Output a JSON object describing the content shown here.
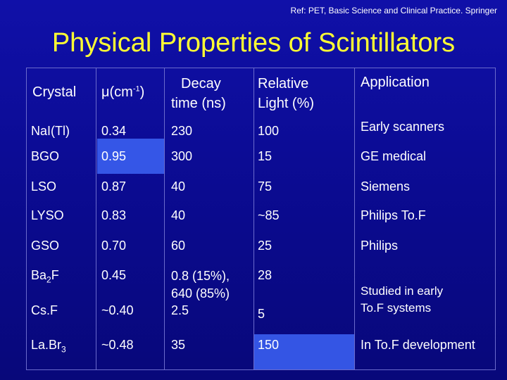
{
  "ref": "Ref: PET, Basic Science and Clinical Practice. Springer",
  "title": "Physical Properties of Scintillators",
  "headers": {
    "crystal": "Crystal",
    "mu": "μ(cm",
    "mu_exp": "-1",
    "mu_close": ")",
    "decay_1": "Decay",
    "decay_2": "time (ns)",
    "light_1": "Relative",
    "light_2": "Light (%)",
    "application": "Application"
  },
  "rows": [
    {
      "crystal": "NaI(Tl)",
      "mu": "0.34",
      "decay": "230",
      "light": "100",
      "app": "Early scanners"
    },
    {
      "crystal": "BGO",
      "mu": "0.95",
      "decay": "300",
      "light": "15",
      "app": "GE medical"
    },
    {
      "crystal": "LSO",
      "mu": "0.87",
      "decay": "40",
      "light": "75",
      "app": "Siemens"
    },
    {
      "crystal": "LYSO",
      "mu": "0.83",
      "decay": "40",
      "light": "~85",
      "app": "Philips To.F"
    },
    {
      "crystal": "GSO",
      "mu": "0.70",
      "decay": "60",
      "light": "25",
      "app": "Philips"
    },
    {
      "crystal_base": "Ba",
      "crystal_sub": "2",
      "crystal_tail": "F",
      "mu": "0.45",
      "decay_1": "0.8 (15%),",
      "decay_2": "640 (85%)",
      "light": "28"
    },
    {
      "crystal": "Cs.F",
      "mu": "~0.40",
      "decay": "2.5",
      "light": "5"
    },
    {
      "crystal_base": "La.Br",
      "crystal_sub": "3",
      "mu": "~0.48",
      "decay": "35",
      "light": "150",
      "app": "In To.F development"
    }
  ],
  "merged_app": {
    "line1": "Studied in early",
    "line2": "To.F systems"
  },
  "colors": {
    "background": "#0c0c96",
    "title": "#ffff33",
    "highlight": "#3a5ef0",
    "grid": "#6b6bcc"
  }
}
